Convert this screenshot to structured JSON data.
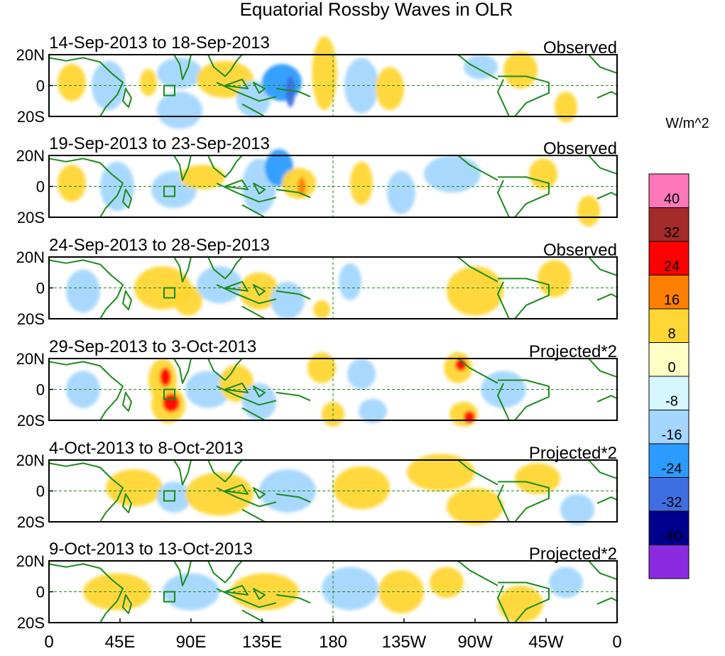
{
  "title": "Equatorial Rossby Waves in OLR",
  "units": "W/m^2",
  "lat_labels": [
    "20N",
    "0",
    "20S"
  ],
  "lon_labels": [
    "0",
    "45E",
    "90E",
    "135E",
    "180",
    "135W",
    "90W",
    "45W",
    "0"
  ],
  "panels": [
    {
      "date_range": "14-Sep-2013 to 18-Sep-2013",
      "kind": "Observed"
    },
    {
      "date_range": "19-Sep-2013 to 23-Sep-2013",
      "kind": "Observed"
    },
    {
      "date_range": "24-Sep-2013 to 28-Sep-2013",
      "kind": "Observed"
    },
    {
      "date_range": "29-Sep-2013 to 3-Oct-2013",
      "kind": "Projected*2"
    },
    {
      "date_range": "4-Oct-2013 to 8-Oct-2013",
      "kind": "Projected*2"
    },
    {
      "date_range": "9-Oct-2013 to 13-Oct-2013",
      "kind": "Projected*2"
    }
  ],
  "colorbar": {
    "labels": [
      "40",
      "32",
      "24",
      "16",
      "8",
      "0",
      "-8",
      "-16",
      "-24",
      "-32",
      "-40"
    ],
    "colors": [
      "#ff77bb",
      "#a52a2a",
      "#ff0000",
      "#ff7f00",
      "#ffd633",
      "#ffffc6",
      "#d6f7ff",
      "#a4d6ff",
      "#2b9bff",
      "#3f6ee0",
      "#00008f",
      "#8a2be2"
    ]
  },
  "colors": {
    "land_outline": "#1a8a1a",
    "frame": "#000000"
  },
  "blobs": [
    [
      [
        0.04,
        0.45,
        0.025,
        0.3,
        "pos8"
      ],
      [
        0.105,
        0.5,
        0.03,
        0.4,
        "neg8"
      ],
      [
        0.175,
        0.45,
        0.015,
        0.22,
        "pos8"
      ],
      [
        0.23,
        0.3,
        0.04,
        0.25,
        "neg8"
      ],
      [
        0.23,
        0.9,
        0.04,
        0.3,
        "neg8"
      ],
      [
        0.31,
        0.4,
        0.05,
        0.3,
        "pos8"
      ],
      [
        0.36,
        0.72,
        0.03,
        0.3,
        "neg8"
      ],
      [
        0.41,
        0.45,
        0.035,
        0.3,
        "neg16"
      ],
      [
        0.425,
        0.6,
        0.008,
        0.25,
        "neg24"
      ],
      [
        0.485,
        0.3,
        0.022,
        0.6,
        "pos8"
      ],
      [
        0.55,
        0.5,
        0.03,
        0.45,
        "neg8"
      ],
      [
        0.6,
        0.55,
        0.025,
        0.35,
        "pos8"
      ],
      [
        0.76,
        0.2,
        0.03,
        0.2,
        "neg8"
      ],
      [
        0.83,
        0.25,
        0.03,
        0.3,
        "pos8"
      ],
      [
        0.91,
        0.85,
        0.02,
        0.25,
        "pos8"
      ]
    ],
    [
      [
        0.04,
        0.45,
        0.025,
        0.3,
        "pos8"
      ],
      [
        0.12,
        0.5,
        0.03,
        0.4,
        "neg8"
      ],
      [
        0.22,
        0.55,
        0.04,
        0.3,
        "neg8"
      ],
      [
        0.27,
        0.35,
        0.04,
        0.2,
        "pos8"
      ],
      [
        0.37,
        0.5,
        0.03,
        0.45,
        "neg8"
      ],
      [
        0.405,
        0.2,
        0.025,
        0.3,
        "neg16"
      ],
      [
        0.44,
        0.45,
        0.03,
        0.25,
        "pos8"
      ],
      [
        0.445,
        0.5,
        0.007,
        0.15,
        "pos16"
      ],
      [
        0.55,
        0.45,
        0.02,
        0.35,
        "pos8"
      ],
      [
        0.62,
        0.6,
        0.025,
        0.35,
        "neg8"
      ],
      [
        0.71,
        0.3,
        0.05,
        0.3,
        "neg8"
      ],
      [
        0.87,
        0.3,
        0.025,
        0.25,
        "pos8"
      ],
      [
        0.95,
        0.9,
        0.02,
        0.25,
        "pos8"
      ]
    ],
    [
      [
        0.06,
        0.55,
        0.03,
        0.35,
        "neg8"
      ],
      [
        0.2,
        0.5,
        0.05,
        0.35,
        "pos8"
      ],
      [
        0.245,
        0.7,
        0.025,
        0.25,
        "pos8"
      ],
      [
        0.3,
        0.45,
        0.04,
        0.3,
        "neg8"
      ],
      [
        0.37,
        0.55,
        0.035,
        0.3,
        "pos8"
      ],
      [
        0.42,
        0.7,
        0.03,
        0.3,
        "neg8"
      ],
      [
        0.48,
        0.85,
        0.015,
        0.15,
        "pos8"
      ],
      [
        0.53,
        0.4,
        0.02,
        0.3,
        "neg8"
      ],
      [
        0.75,
        0.55,
        0.05,
        0.4,
        "pos8"
      ],
      [
        0.89,
        0.35,
        0.03,
        0.3,
        "pos8"
      ]
    ],
    [
      [
        0.06,
        0.5,
        0.03,
        0.3,
        "neg8"
      ],
      [
        0.2,
        0.35,
        0.025,
        0.35,
        "pos8"
      ],
      [
        0.205,
        0.3,
        0.01,
        0.15,
        "pos24"
      ],
      [
        0.21,
        0.75,
        0.03,
        0.3,
        "pos8"
      ],
      [
        0.215,
        0.72,
        0.015,
        0.15,
        "pos24"
      ],
      [
        0.28,
        0.5,
        0.04,
        0.3,
        "neg8"
      ],
      [
        0.33,
        0.4,
        0.03,
        0.3,
        "pos8"
      ],
      [
        0.37,
        0.7,
        0.03,
        0.3,
        "neg8"
      ],
      [
        0.48,
        0.15,
        0.025,
        0.25,
        "pos8"
      ],
      [
        0.5,
        0.9,
        0.02,
        0.2,
        "pos8"
      ],
      [
        0.55,
        0.25,
        0.025,
        0.25,
        "neg8"
      ],
      [
        0.57,
        0.85,
        0.025,
        0.2,
        "neg8"
      ],
      [
        0.72,
        0.15,
        0.025,
        0.25,
        "pos8"
      ],
      [
        0.725,
        0.1,
        0.01,
        0.1,
        "pos24"
      ],
      [
        0.73,
        0.9,
        0.025,
        0.2,
        "pos8"
      ],
      [
        0.74,
        0.95,
        0.01,
        0.1,
        "pos24"
      ],
      [
        0.8,
        0.5,
        0.04,
        0.3,
        "neg8"
      ]
    ],
    [
      [
        0.15,
        0.45,
        0.05,
        0.3,
        "pos8"
      ],
      [
        0.22,
        0.6,
        0.03,
        0.25,
        "neg8"
      ],
      [
        0.3,
        0.55,
        0.06,
        0.35,
        "pos8"
      ],
      [
        0.42,
        0.5,
        0.05,
        0.35,
        "neg8"
      ],
      [
        0.55,
        0.45,
        0.05,
        0.35,
        "pos8"
      ],
      [
        0.69,
        0.2,
        0.06,
        0.3,
        "pos8"
      ],
      [
        0.75,
        0.75,
        0.05,
        0.3,
        "pos8"
      ],
      [
        0.86,
        0.3,
        0.04,
        0.25,
        "pos8"
      ],
      [
        0.93,
        0.8,
        0.03,
        0.25,
        "neg8"
      ]
    ],
    [
      [
        0.12,
        0.5,
        0.06,
        0.3,
        "pos8"
      ],
      [
        0.25,
        0.5,
        0.05,
        0.3,
        "neg8"
      ],
      [
        0.38,
        0.5,
        0.06,
        0.3,
        "pos8"
      ],
      [
        0.53,
        0.45,
        0.05,
        0.35,
        "neg8"
      ],
      [
        0.62,
        0.5,
        0.04,
        0.35,
        "pos8"
      ],
      [
        0.7,
        0.35,
        0.03,
        0.25,
        "pos8"
      ],
      [
        0.83,
        0.7,
        0.04,
        0.3,
        "pos8"
      ],
      [
        0.91,
        0.35,
        0.03,
        0.25,
        "neg8"
      ]
    ]
  ]
}
